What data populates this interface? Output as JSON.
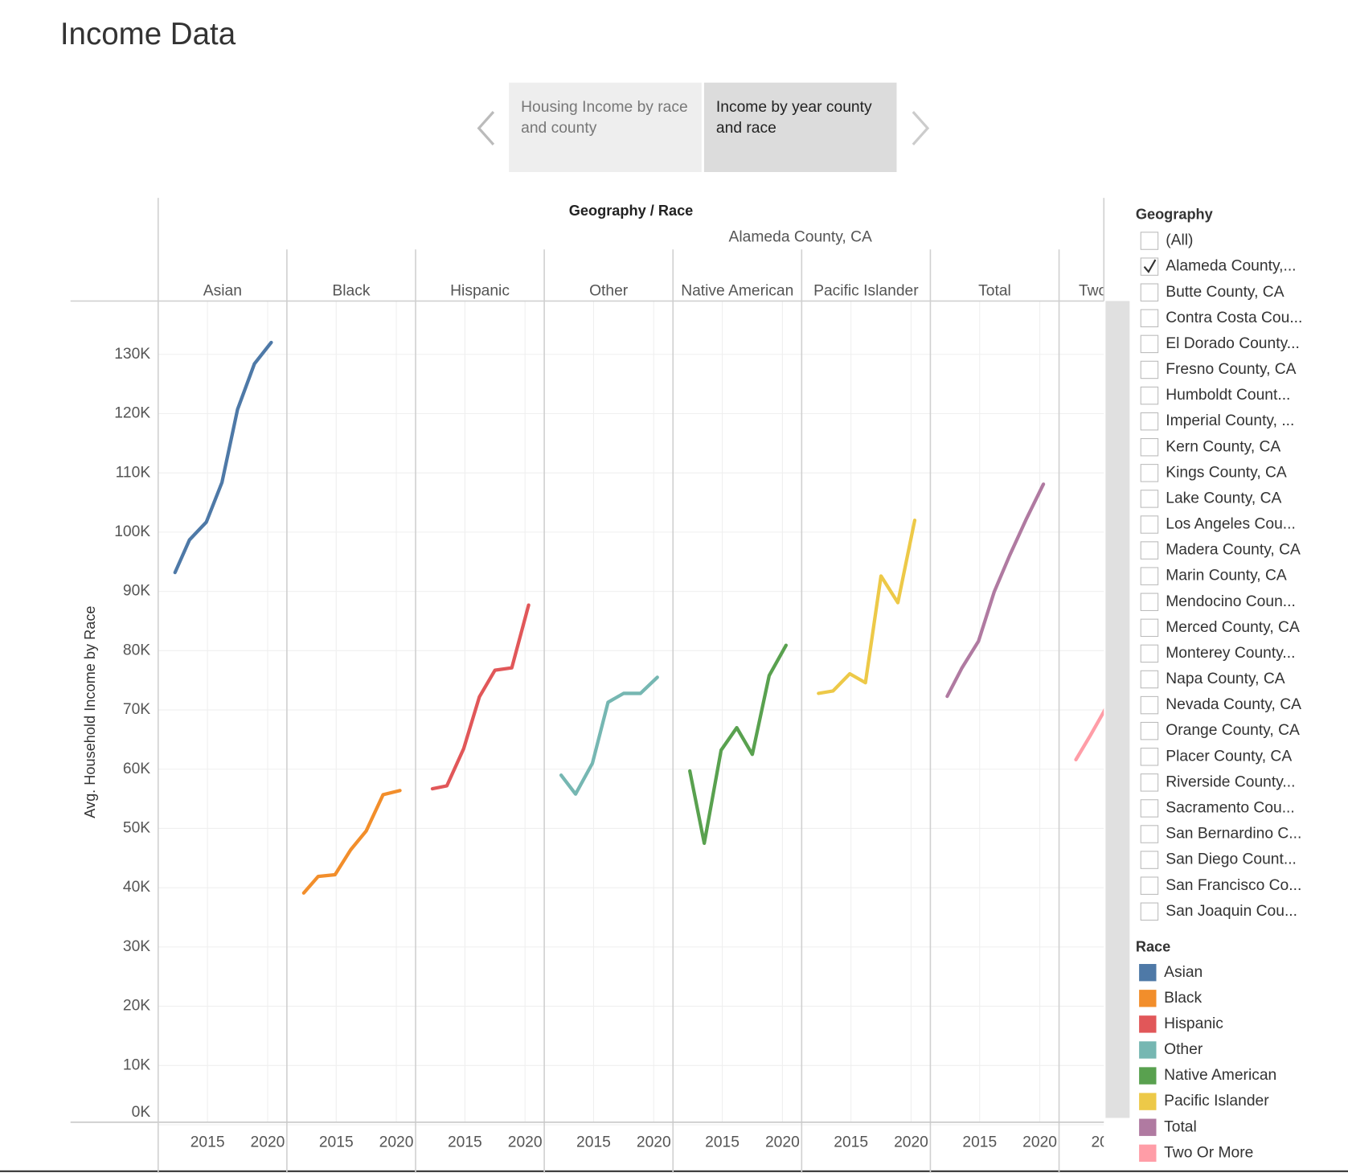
{
  "page": {
    "title": "Income Data"
  },
  "tabs": [
    "Housing Income by race and county",
    "Income by year county and race"
  ],
  "chart_data": {
    "type": "line",
    "title": "Geography / Race",
    "subtitle": "Alameda County, CA",
    "y_label": "Avg. Household Income by Race",
    "x": [
      2012.3,
      2013.5,
      2014.9,
      2016.2,
      2017.5,
      2018.9,
      2020.3
    ],
    "xlim": [
      2010.9,
      2021.6
    ],
    "xticks": [
      2015,
      2020
    ],
    "ylim": [
      0,
      139000
    ],
    "yticks": [
      {
        "value": 0,
        "label": "0K"
      },
      {
        "value": 10000,
        "label": "10K"
      },
      {
        "value": 20000,
        "label": "20K"
      },
      {
        "value": 30000,
        "label": "30K"
      },
      {
        "value": 40000,
        "label": "40K"
      },
      {
        "value": 50000,
        "label": "50K"
      },
      {
        "value": 60000,
        "label": "60K"
      },
      {
        "value": 70000,
        "label": "70K"
      },
      {
        "value": 80000,
        "label": "80K"
      },
      {
        "value": 90000,
        "label": "90K"
      },
      {
        "value": 100000,
        "label": "100K"
      },
      {
        "value": 110000,
        "label": "110K"
      },
      {
        "value": 120000,
        "label": "120K"
      },
      {
        "value": 130000,
        "label": "130K"
      }
    ],
    "grid": true,
    "series": [
      {
        "name": "Asian",
        "color": "#4e79a7",
        "values": [
          93200,
          98700,
          101700,
          108400,
          120700,
          128400,
          132000
        ]
      },
      {
        "name": "Black",
        "color": "#f28e2b",
        "values": [
          39100,
          41900,
          42200,
          46400,
          49600,
          55700,
          56400
        ]
      },
      {
        "name": "Hispanic",
        "color": "#e15759",
        "values": [
          56700,
          57200,
          63500,
          72200,
          76700,
          77100,
          87700
        ]
      },
      {
        "name": "Other",
        "color": "#76b7b2",
        "values": [
          59000,
          55800,
          61000,
          71300,
          72800,
          72800,
          75500
        ]
      },
      {
        "name": "Native American",
        "color": "#59a14f",
        "values": [
          59700,
          47500,
          63200,
          67000,
          62500,
          75800,
          80900
        ]
      },
      {
        "name": "Pacific Islander",
        "color": "#edc948",
        "values": [
          72800,
          73200,
          76100,
          74600,
          92600,
          88100,
          102000
        ]
      },
      {
        "name": "Total",
        "color": "#b07aa1",
        "values": [
          72300,
          77000,
          81600,
          89900,
          96100,
          102300,
          108100
        ]
      },
      {
        "name": "Two Or More",
        "color": "#ff9da7",
        "values": [
          61600,
          65700,
          70700,
          null,
          null,
          null,
          null
        ]
      }
    ],
    "legend": {
      "title": "Race"
    }
  },
  "filter": {
    "title": "Geography",
    "items": [
      {
        "label": "(All)",
        "checked": false
      },
      {
        "label": "Alameda County,...",
        "checked": true
      },
      {
        "label": "Butte County, CA",
        "checked": false
      },
      {
        "label": "Contra Costa Cou...",
        "checked": false
      },
      {
        "label": "El Dorado County...",
        "checked": false
      },
      {
        "label": "Fresno County, CA",
        "checked": false
      },
      {
        "label": "Humboldt Count...",
        "checked": false
      },
      {
        "label": "Imperial County, ...",
        "checked": false
      },
      {
        "label": "Kern County, CA",
        "checked": false
      },
      {
        "label": "Kings County, CA",
        "checked": false
      },
      {
        "label": "Lake County, CA",
        "checked": false
      },
      {
        "label": "Los Angeles Cou...",
        "checked": false
      },
      {
        "label": "Madera County, CA",
        "checked": false
      },
      {
        "label": "Marin County, CA",
        "checked": false
      },
      {
        "label": "Mendocino Coun...",
        "checked": false
      },
      {
        "label": "Merced County, CA",
        "checked": false
      },
      {
        "label": "Monterey County...",
        "checked": false
      },
      {
        "label": "Napa County, CA",
        "checked": false
      },
      {
        "label": "Nevada County, CA",
        "checked": false
      },
      {
        "label": "Orange County, CA",
        "checked": false
      },
      {
        "label": "Placer County, CA",
        "checked": false
      },
      {
        "label": "Riverside County...",
        "checked": false
      },
      {
        "label": "Sacramento Cou...",
        "checked": false
      },
      {
        "label": "San Bernardino C...",
        "checked": false
      },
      {
        "label": "San Diego Count...",
        "checked": false
      },
      {
        "label": "San Francisco Co...",
        "checked": false
      },
      {
        "label": "San Joaquin Cou...",
        "checked": false
      }
    ]
  }
}
